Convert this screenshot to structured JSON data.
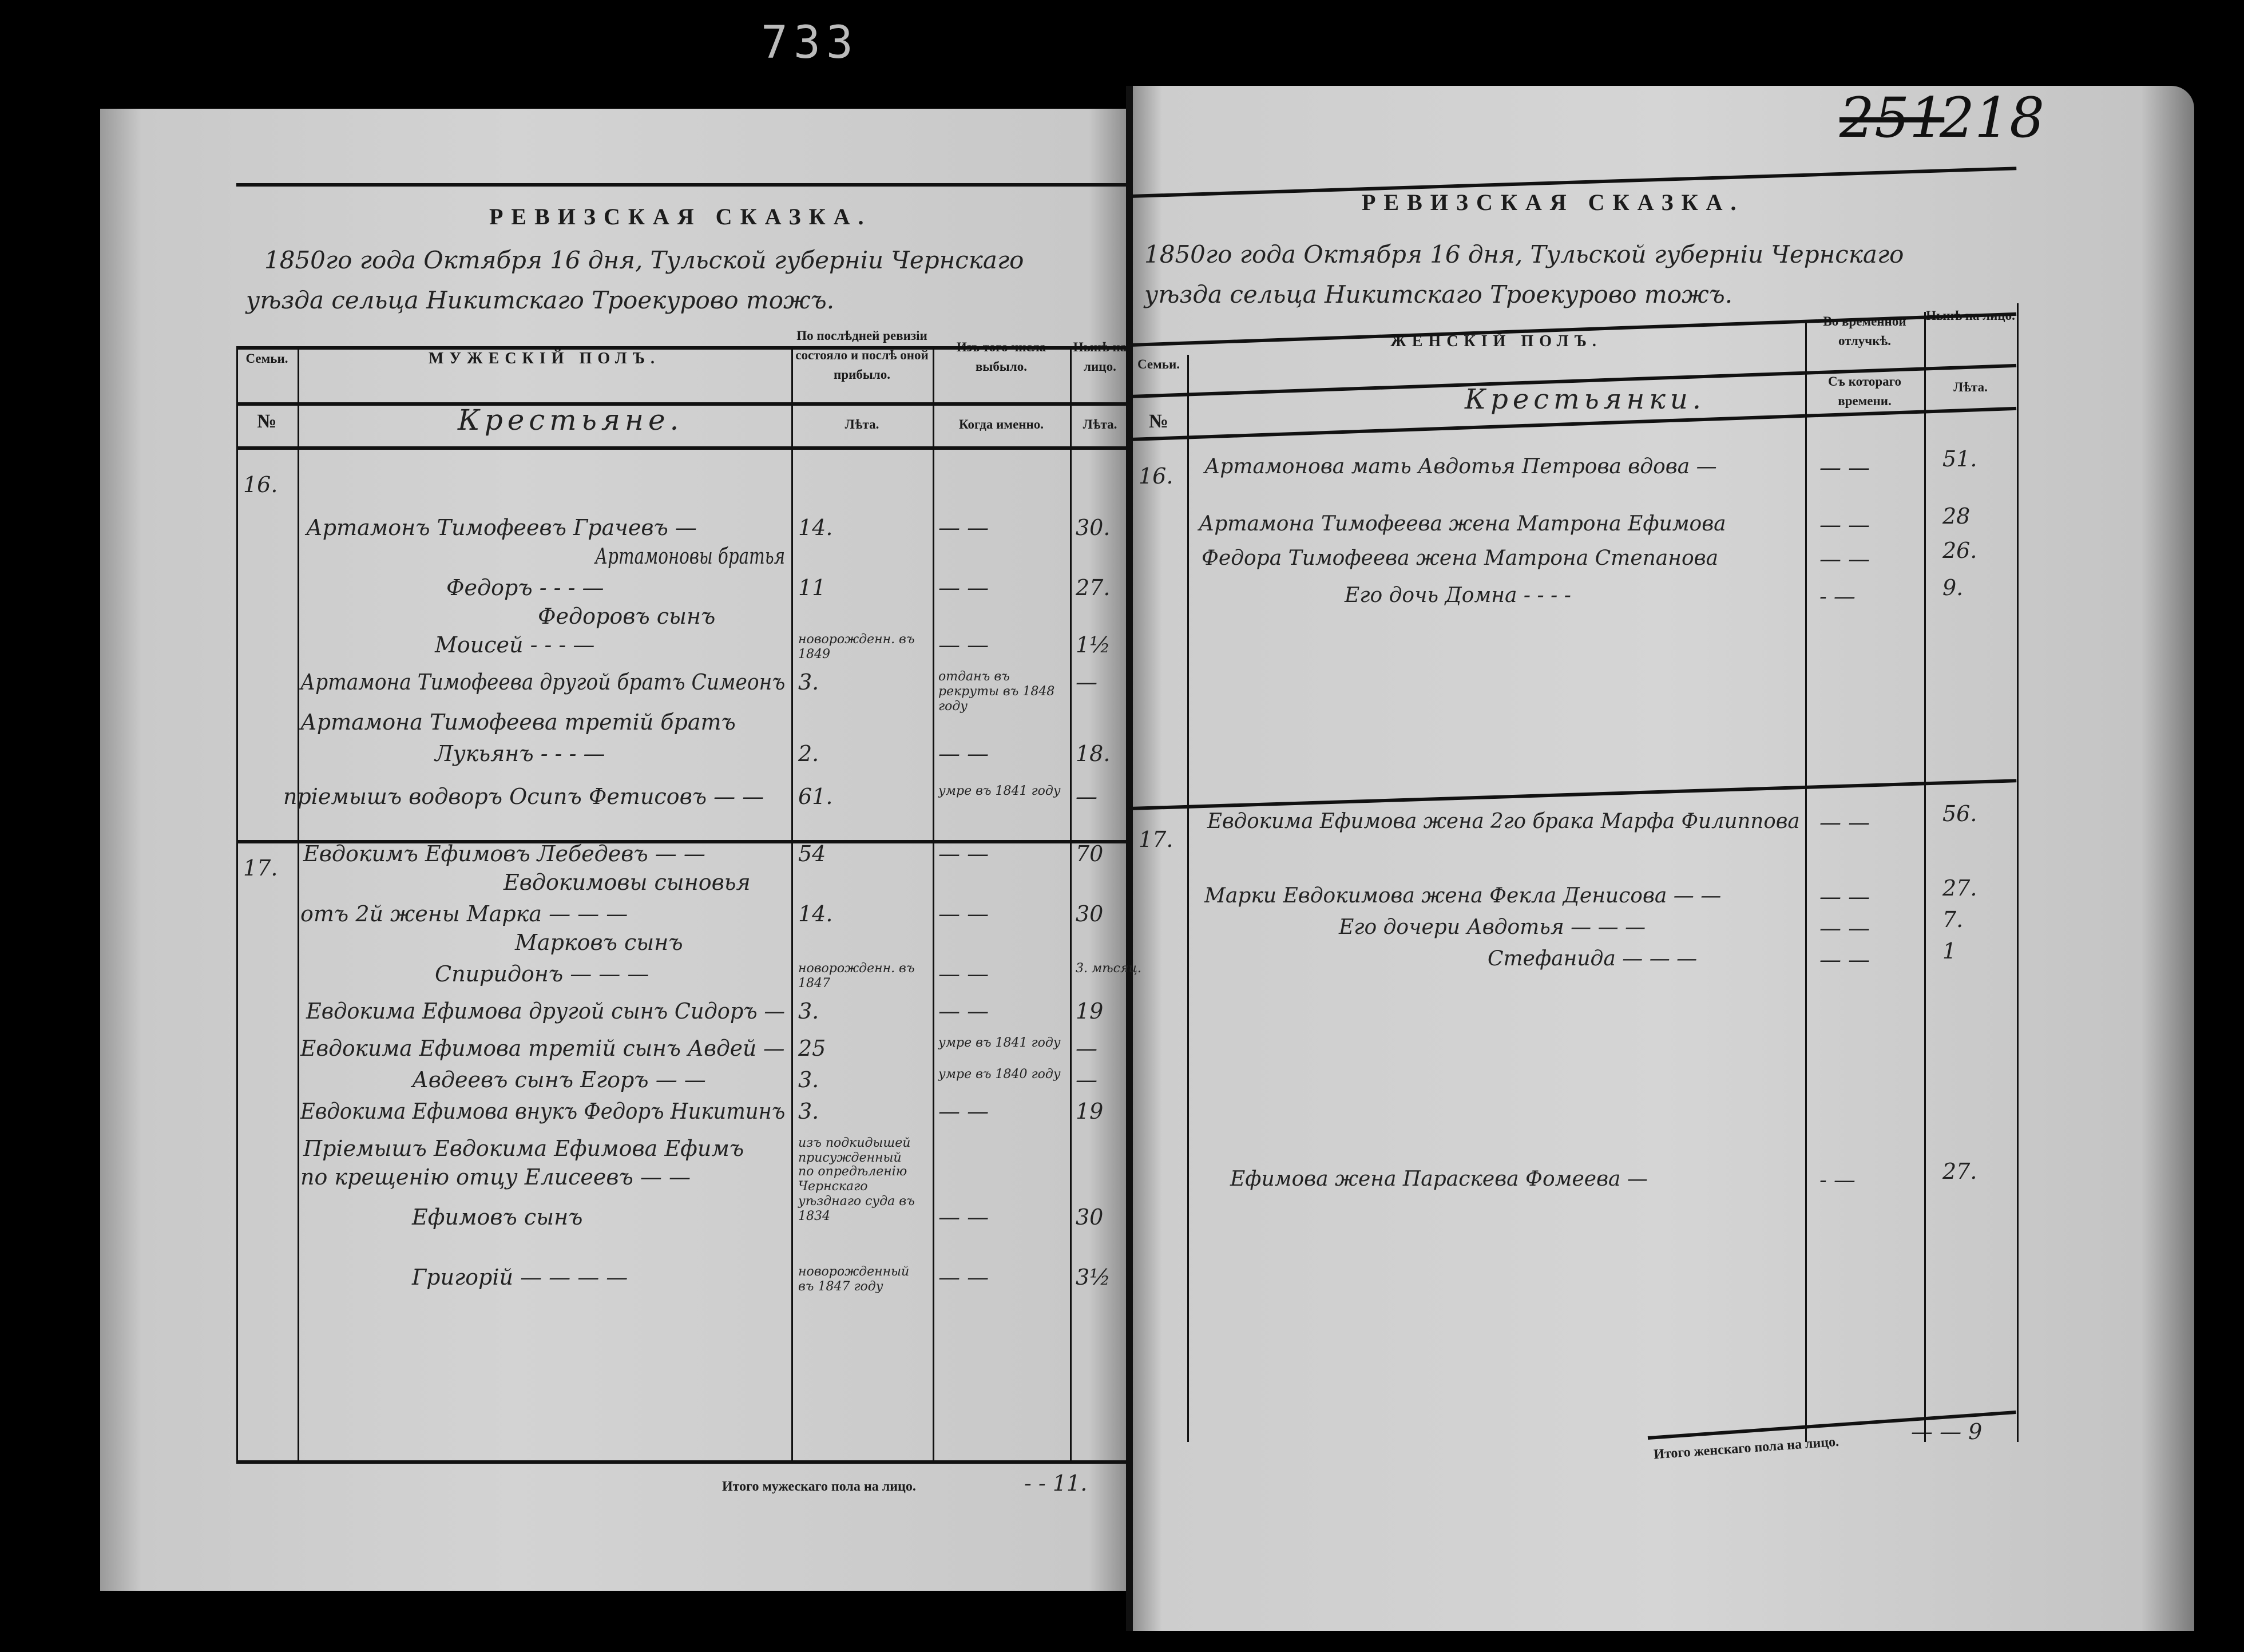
{
  "archive_stamp": "733",
  "page_numbers": {
    "old": "251",
    "new": "218"
  },
  "left": {
    "title": "РЕВИЗСКАЯ СКАЗКА.",
    "date_line_1": "1850го года Октября 16 дня, Тульской губерніи Чернскаго",
    "date_line_2": "уѣзда сельца Никитскаго Троекурово тожъ.",
    "headers": {
      "family": "Семьи.",
      "section": "МУЖЕСКІЙ ПОЛЪ.",
      "at_last_revision": "По послѣдней ревизіи состояло и послѣ оной прибыло.",
      "dropped": "Изъ того числа выбыло.",
      "present": "Нынѣ на лицо.",
      "number_sign": "№",
      "category": "Крестьяне.",
      "years": "Лѣта.",
      "when": "Когда именно.",
      "years_now": "Лѣта."
    },
    "families": [
      "16.",
      "17."
    ],
    "rows": [
      {
        "name": "Артамонъ Тимофеевъ Грачевъ —",
        "rev": "14.",
        "out": "— —",
        "now": "30."
      },
      {
        "name": "Артамоновы братья",
        "rev": "",
        "out": "",
        "now": ""
      },
      {
        "name": "Федоръ - - - —",
        "rev": "11",
        "out": "— —",
        "now": "27."
      },
      {
        "name": "Федоровъ сынъ",
        "rev": "",
        "out": "",
        "now": ""
      },
      {
        "name": "Моисей - - - —",
        "rev": "новорожденн. въ 1849",
        "out": "— —",
        "now": "1½"
      },
      {
        "name": "Артамона Тимофеева другой братъ Симеонъ",
        "rev": "3.",
        "out": "отданъ въ рекруты въ 1848 году",
        "now": "—"
      },
      {
        "name": "Артамона Тимофеева третій братъ",
        "rev": "",
        "out": "",
        "now": ""
      },
      {
        "name": "Лукьянъ - - - —",
        "rev": "2.",
        "out": "— —",
        "now": "18."
      },
      {
        "name": "пріемышъ водворъ Осипъ Фетисовъ — —",
        "rev": "61.",
        "out": "умре въ 1841 году",
        "now": "—"
      },
      {
        "name": "Евдокимъ Ефимовъ Лебедевъ — —",
        "rev": "54",
        "out": "— —",
        "now": "70"
      },
      {
        "name": "Евдокимовы сыновья",
        "rev": "",
        "out": "",
        "now": ""
      },
      {
        "name": "отъ 2й жены Марка — — —",
        "rev": "14.",
        "out": "— —",
        "now": "30"
      },
      {
        "name": "Марковъ сынъ",
        "rev": "",
        "out": "",
        "now": ""
      },
      {
        "name": "Спиридонъ — — —",
        "rev": "новорожденн. въ 1847",
        "out": "— —",
        "now": "3. мѣсяц."
      },
      {
        "name": "Евдокима Ефимова другой сынъ Сидоръ —",
        "rev": "3.",
        "out": "— —",
        "now": "19"
      },
      {
        "name": "Евдокима Ефимова третій сынъ Авдей —",
        "rev": "25",
        "out": "умре въ 1841 году",
        "now": "—"
      },
      {
        "name": "Авдеевъ сынъ Егоръ — —",
        "rev": "3.",
        "out": "умре въ 1840 году",
        "now": "—"
      },
      {
        "name": "Евдокима Ефимова внукъ Федоръ Никитинъ",
        "rev": "3.",
        "out": "— —",
        "now": "19"
      },
      {
        "name": "Пріемышъ Евдокима Ефимова Ефимъ",
        "rev": "изъ подкидышей присужденный",
        "out": "",
        "now": ""
      },
      {
        "name": "по крещенію отцу Елисеевъ — —",
        "rev": "по опредѣленію Чернскаго уѣзднаго суда въ 1834",
        "out": "",
        "now": ""
      },
      {
        "name": "Ефимовъ сынъ",
        "rev": "",
        "out": "— —",
        "now": "30"
      },
      {
        "name": "Григорій — — — —",
        "rev": "новорожденный въ 1847 году",
        "out": "— —",
        "now": "3½"
      }
    ],
    "footer_label": "Итого мужескаго пола на лицо.",
    "footer_value": "- - 11."
  },
  "right": {
    "title": "РЕВИЗСКАЯ СКАЗКА.",
    "date_line_1": "1850го года Октября 16 дня, Тульской губерніи Чернскаго",
    "date_line_2": "уѣзда сельца Никитскаго Троекурово тожъ.",
    "headers": {
      "family": "Семьи.",
      "section": "ЖЕНСКІЙ ПОЛЪ.",
      "temporary_absence": "Во временной отлучкѣ.",
      "present": "Нынѣ на лицо.",
      "number_sign": "№",
      "category": "Крестьянки.",
      "since_when": "Съ котораго времени.",
      "years": "Лѣта."
    },
    "families": [
      "16.",
      "17."
    ],
    "rows": [
      {
        "name": "Артамонова мать Авдотья Петрова вдова —",
        "absent": "— —",
        "now": "51."
      },
      {
        "name": "Артамона Тимофеева жена Матрона Ефимова",
        "absent": "— —",
        "now": "28"
      },
      {
        "name": "Федора Тимофеева жена Матрона Степанова",
        "absent": "— —",
        "now": "26."
      },
      {
        "name": "Его дочь Домна - - - -",
        "absent": "- —",
        "now": "9."
      },
      {
        "name": "Евдокима Ефимова жена 2го брака Марфа Филиппова",
        "absent": "— —",
        "now": "56."
      },
      {
        "name": "Марки Евдокимова жена Фекла Денисова — —",
        "absent": "— —",
        "now": "27."
      },
      {
        "name": "Его дочери Авдотья — — —",
        "absent": "— —",
        "now": "7."
      },
      {
        "name": "Стефанида — — —",
        "absent": "— —",
        "now": "1"
      },
      {
        "name": "Ефимова жена Параскева Фомеева —",
        "absent": "- —",
        "now": "27."
      }
    ],
    "footer_label": "Итого женскаго пола на лицо.",
    "footer_value": "— — 9"
  },
  "colors": {
    "paper": "#cfcfcf",
    "ink": "#1b1b1b",
    "background": "#000000"
  }
}
